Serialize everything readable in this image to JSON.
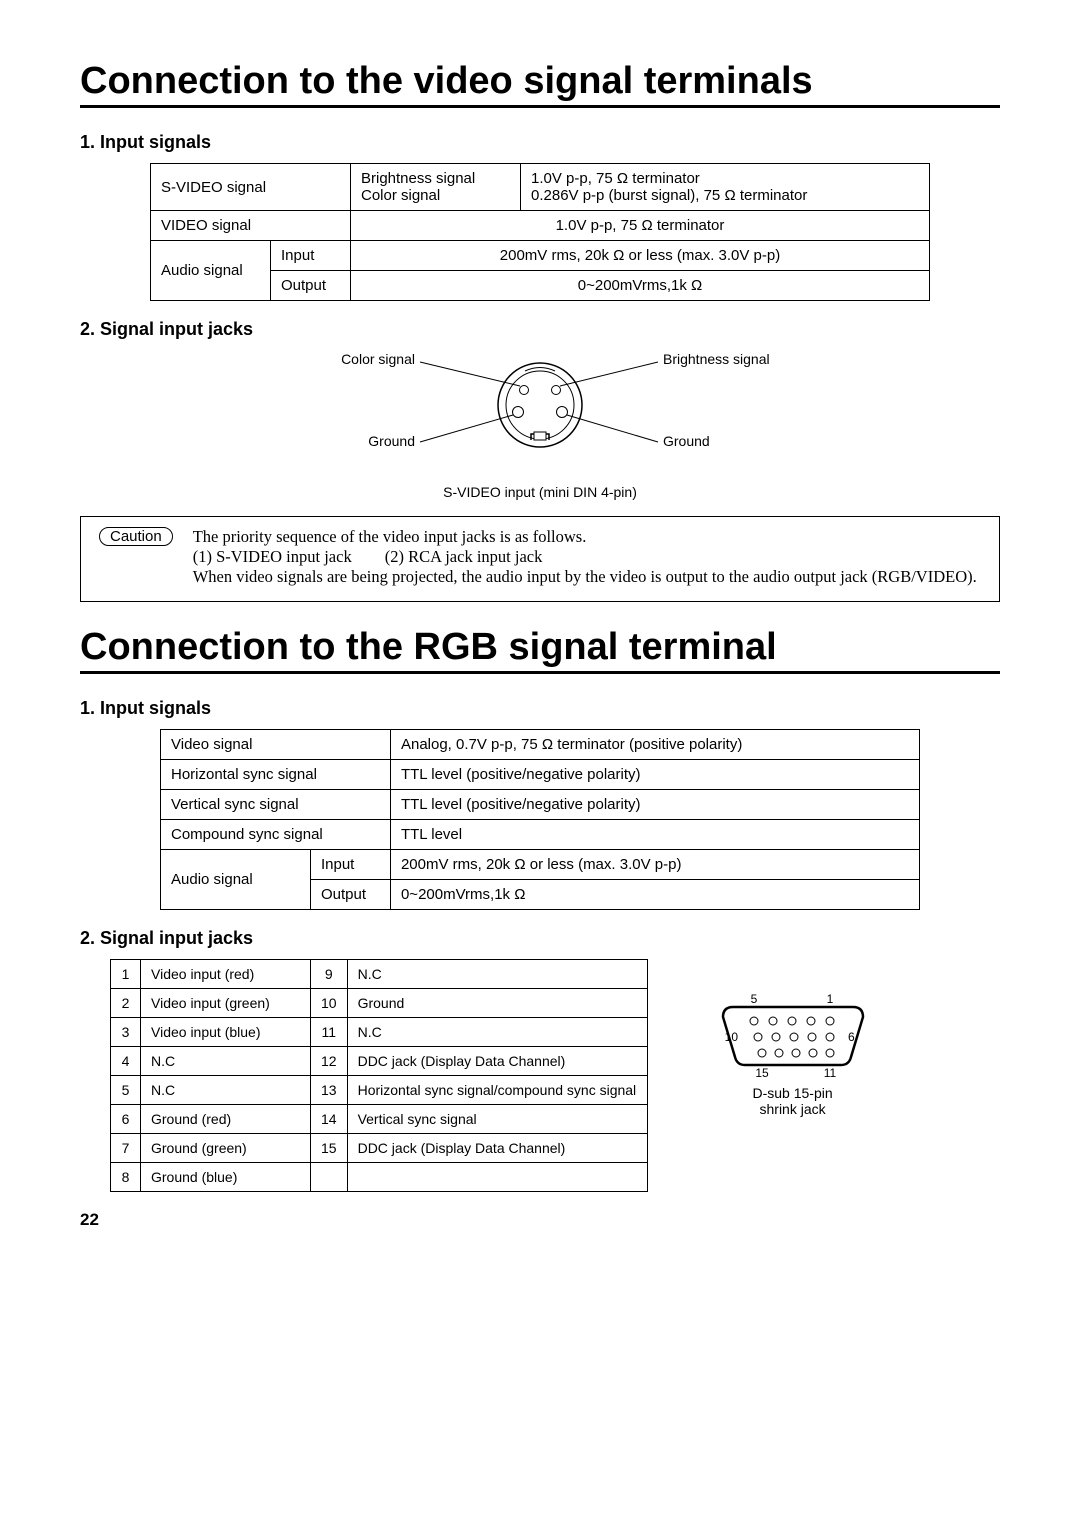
{
  "sectionA": {
    "title": "Connection to the video signal terminals",
    "head1": "1. Input signals",
    "head2": "2. Signal input jacks",
    "table": {
      "r1c1": "S-VIDEO signal",
      "r1c3a": "Brightness signal",
      "r1c3b": "Color signal",
      "r1c4a": "1.0V p-p, 75 Ω terminator",
      "r1c4b": "0.286V p-p (burst signal), 75 Ω terminator",
      "r2c1": "VIDEO signal",
      "r2c4": "1.0V p-p, 75 Ω terminator",
      "r3c1": "Audio signal",
      "r3c2": "Input",
      "r3c4": "200mV rms, 20k Ω or less (max. 3.0V p-p)",
      "r4c2": "Output",
      "r4c4": "0~200mVrms,1k Ω"
    },
    "labels": {
      "color": "Color signal",
      "brightness": "Brightness signal",
      "groundL": "Ground",
      "groundR": "Ground"
    },
    "caption": "S-VIDEO input (mini DIN 4-pin)",
    "caution": {
      "tag": "Caution",
      "l1": "The priority sequence of the video input jacks is as follows.",
      "l2a": "(1) S-VIDEO input jack",
      "l2b": "(2) RCA jack input jack",
      "l3": "When video signals are being projected, the audio input by the video is output to the audio output jack (RGB/VIDEO)."
    }
  },
  "sectionB": {
    "title": "Connection to the RGB signal terminal",
    "head1": "1. Input signals",
    "head2": "2. Signal input jacks",
    "table": {
      "r1a": "Video signal",
      "r1b": "Analog, 0.7V p-p, 75 Ω terminator (positive polarity)",
      "r2a": "Horizontal sync signal",
      "r2b": "TTL level (positive/negative polarity)",
      "r3a": "Vertical sync signal",
      "r3b": "TTL level (positive/negative polarity)",
      "r4a": "Compound sync signal",
      "r4b": "TTL level",
      "r5a": "Audio signal",
      "r5b": "Input",
      "r5c": "200mV rms, 20k Ω or less (max. 3.0V p-p)",
      "r6b": "Output",
      "r6c": "0~200mVrms,1k Ω"
    },
    "pins": [
      [
        "1",
        "Video input (red)",
        "9",
        "N.C"
      ],
      [
        "2",
        "Video input (green)",
        "10",
        "Ground"
      ],
      [
        "3",
        "Video input (blue)",
        "11",
        "N.C"
      ],
      [
        "4",
        "N.C",
        "12",
        "DDC jack (Display Data Channel)"
      ],
      [
        "5",
        "N.C",
        "13",
        "Horizontal sync signal/compound sync signal"
      ],
      [
        "6",
        "Ground (red)",
        "14",
        "Vertical sync signal"
      ],
      [
        "7",
        "Ground (green)",
        "15",
        "DDC jack (Display Data Channel)"
      ],
      [
        "8",
        "Ground (blue)",
        "",
        ""
      ]
    ],
    "dsub": {
      "n5": "5",
      "n1": "1",
      "n10": "10",
      "n6": "6",
      "n15": "15",
      "n11": "11",
      "label1": "D-sub 15-pin",
      "label2": "shrink jack"
    }
  },
  "pageNumber": "22"
}
